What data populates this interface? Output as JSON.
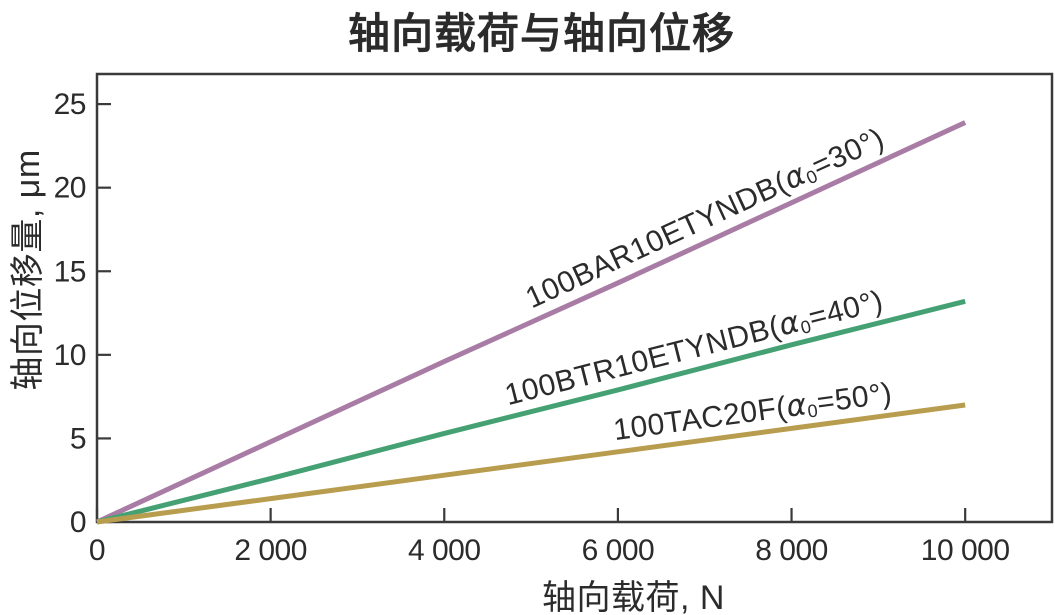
{
  "chart_data": {
    "type": "line",
    "title": "轴向载荷与轴向位移",
    "xlabel": "轴向载荷, N",
    "ylabel": "轴向位移量, μm",
    "xlim": [
      0,
      11000
    ],
    "ylim": [
      0,
      26.8
    ],
    "x_ticks": [
      0,
      2000,
      4000,
      6000,
      8000,
      10000
    ],
    "x_tick_labels": [
      "0",
      "2 000",
      "4 000",
      "6 000",
      "8 000",
      "10 000"
    ],
    "y_ticks": [
      0,
      5,
      10,
      15,
      20,
      25
    ],
    "y_tick_labels": [
      "0",
      "5",
      "10",
      "15",
      "20",
      "25"
    ],
    "grid": false,
    "legend": "rotated-inline-labels-above-lines",
    "x": [
      0,
      2000,
      4000,
      6000,
      8000,
      10000
    ],
    "series": [
      {
        "name": "100BAR10ETYNDB",
        "label_prefix": "100BAR10ETYNDB(",
        "label_alpha": "α",
        "label_sub": "0",
        "label_suffix": "=30°)",
        "color": "#a87ca4",
        "values": [
          0,
          4.8,
          9.6,
          14.3,
          19.1,
          23.9
        ]
      },
      {
        "name": "100BTR10ETYNDB",
        "label_prefix": "100BTR10ETYNDB(",
        "label_alpha": "α",
        "label_sub": "0",
        "label_suffix": "=40°)",
        "color": "#45a173",
        "values": [
          0,
          2.6,
          5.3,
          7.9,
          10.6,
          13.2
        ]
      },
      {
        "name": "100TAC20F",
        "label_prefix": "100TAC20F(",
        "label_alpha": "α",
        "label_sub": "0",
        "label_suffix": "=50°)",
        "color": "#b89d4f",
        "values": [
          0,
          1.4,
          2.8,
          4.2,
          5.6,
          7.0
        ]
      }
    ]
  },
  "frame_color": "#3a3a3a",
  "text_color": "#2b2b2b",
  "line_width": 5
}
